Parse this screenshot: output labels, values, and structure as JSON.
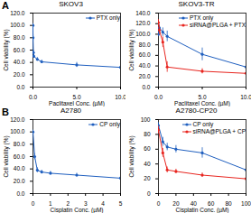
{
  "chart_data": [
    {
      "type": "line",
      "panel": "A",
      "title": "SKOV3",
      "x_label": "Paclitaxel Conc. (µM)",
      "y_label": "Cell viability (%)",
      "xlim": [
        0,
        10
      ],
      "xticks": [
        {
          "value": 0,
          "label": "0.0"
        },
        {
          "value": 5,
          "label": "5.0"
        },
        {
          "value": 10,
          "label": "10.0"
        }
      ],
      "ylim": [
        0,
        120
      ],
      "yticks": [
        {
          "value": 0,
          "label": "0.0"
        },
        {
          "value": 20,
          "label": "20.0"
        },
        {
          "value": 40,
          "label": "40.0"
        },
        {
          "value": 60,
          "label": "60.0"
        },
        {
          "value": 80,
          "label": "80.0"
        },
        {
          "value": 100,
          "label": "100.0"
        },
        {
          "value": 120,
          "label": "120.0"
        }
      ],
      "legend": "top-right",
      "series": [
        {
          "name": "PTX only",
          "color": "#1f5fbf",
          "marker": "circle",
          "x": [
            0,
            0.01,
            0.05,
            0.1,
            0.5,
            1,
            5,
            10
          ],
          "values": [
            100,
            80,
            56,
            50,
            45,
            41,
            36,
            32
          ],
          "errors": [
            3,
            5,
            4,
            3,
            3,
            3,
            4,
            3
          ]
        }
      ]
    },
    {
      "type": "line",
      "title": "SKOV3-TR",
      "x_label": "Paclitaxel Conc. (µM)",
      "y_label": "Cell viability (%)",
      "xlim": [
        0,
        10
      ],
      "xticks": [
        {
          "value": 0,
          "label": "0.0"
        },
        {
          "value": 5,
          "label": "5.0"
        },
        {
          "value": 10,
          "label": "10.0"
        }
      ],
      "ylim": [
        0,
        140
      ],
      "yticks": [
        {
          "value": 0,
          "label": "0.0"
        },
        {
          "value": 20,
          "label": "20.0"
        },
        {
          "value": 40,
          "label": "40.0"
        },
        {
          "value": 60,
          "label": "60.0"
        },
        {
          "value": 80,
          "label": "80.0"
        },
        {
          "value": 100,
          "label": "100.0"
        },
        {
          "value": 120,
          "label": "120.0"
        },
        {
          "value": 140,
          "label": "140.0"
        }
      ],
      "legend": "top-right",
      "series": [
        {
          "name": "PTX only",
          "color": "#1f5fbf",
          "marker": "circle",
          "x": [
            0,
            0.1,
            0.5,
            1,
            5,
            10
          ],
          "values": [
            100,
            112,
            104,
            96,
            62,
            38
          ],
          "errors": [
            4,
            6,
            8,
            10,
            12,
            6
          ]
        },
        {
          "name": "siRNA@PLGA + PTX",
          "color": "#e8251f",
          "marker": "circle",
          "x": [
            0,
            0.1,
            0.5,
            1,
            5,
            10
          ],
          "values": [
            122,
            108,
            85,
            38,
            30,
            26
          ],
          "errors": [
            6,
            8,
            10,
            10,
            5,
            4
          ]
        }
      ]
    },
    {
      "type": "line",
      "panel": "B",
      "title": "A2780",
      "x_label": "Cisplatin Conc. (µM)",
      "y_label": "Cell viability (%)",
      "xlim": [
        0,
        5
      ],
      "xticks": [
        0,
        1,
        2,
        3,
        4,
        5
      ],
      "ylim": [
        0,
        120
      ],
      "yticks": [
        {
          "value": 0,
          "label": "0.0"
        },
        {
          "value": 20,
          "label": "20.0"
        },
        {
          "value": 40,
          "label": "40.0"
        },
        {
          "value": 60,
          "label": "60.0"
        },
        {
          "value": 80,
          "label": "80.0"
        },
        {
          "value": 100,
          "label": "100.0"
        },
        {
          "value": 120,
          "label": "120.0"
        }
      ],
      "legend": "top-right",
      "series": [
        {
          "name": "CP only",
          "color": "#1f5fbf",
          "marker": "circle",
          "x": [
            0,
            0.1,
            0.25,
            0.5,
            1,
            2.5,
            5
          ],
          "values": [
            100,
            60,
            38,
            35,
            33,
            30,
            25
          ],
          "errors": [
            3,
            5,
            4,
            3,
            3,
            3,
            3
          ]
        }
      ]
    },
    {
      "type": "line",
      "title": "A2780-CP20",
      "x_label": "Cisplatin Conc. (µM)",
      "y_label": "Cell viability (%)",
      "xlim": [
        0,
        100
      ],
      "xticks": [
        0,
        20,
        40,
        60,
        80,
        100
      ],
      "ylim": [
        0,
        100
      ],
      "yticks": [
        0,
        20,
        40,
        60,
        80,
        100
      ],
      "legend": "top-right",
      "series": [
        {
          "name": "CP only",
          "color": "#1f5fbf",
          "marker": "circle",
          "x": [
            0,
            5,
            10,
            20,
            50,
            100
          ],
          "values": [
            92,
            70,
            63,
            60,
            55,
            32
          ],
          "errors": [
            4,
            6,
            5,
            5,
            7,
            4
          ]
        },
        {
          "name": "siRNA@PLGA + CP",
          "color": "#e8251f",
          "marker": "circle",
          "x": [
            0,
            5,
            10,
            20,
            50,
            100
          ],
          "values": [
            86,
            55,
            32,
            30,
            25,
            20
          ],
          "errors": [
            5,
            6,
            4,
            3,
            3,
            3
          ]
        }
      ]
    }
  ]
}
